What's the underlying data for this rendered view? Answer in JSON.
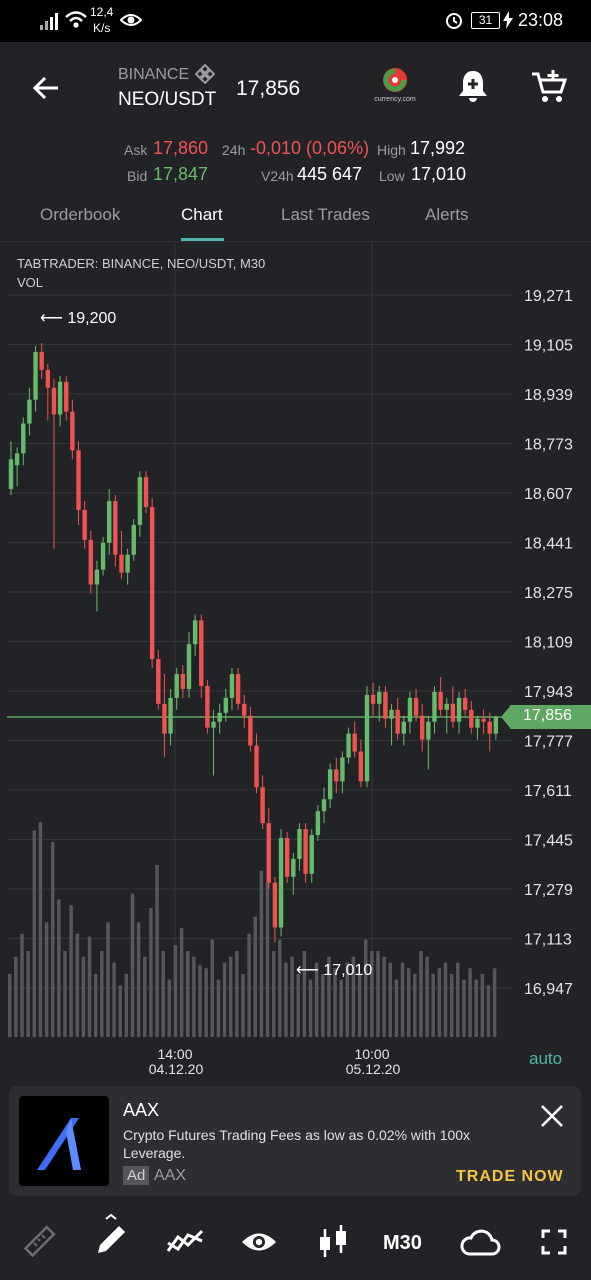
{
  "status_bar": {
    "net_speed_value": "12,4",
    "net_speed_unit": "K/s",
    "battery": "31",
    "time": "23:08"
  },
  "header": {
    "exchange": "BINANCE",
    "pair": "NEO/USDT",
    "price": "17,856",
    "logo_text": "currency.com"
  },
  "stats": {
    "ask_label": "Ask",
    "ask_value": "17,860",
    "bid_label": "Bid",
    "bid_value": "17,847",
    "change_label": "24h",
    "change_value": "-0,010 (0,06%)",
    "volume_label": "V24h",
    "volume_value": "445 647",
    "high_label": "High",
    "high_value": "17,992",
    "low_label": "Low",
    "low_value": "17,010"
  },
  "tabs": [
    "Orderbook",
    "Chart",
    "Last Trades",
    "Alerts"
  ],
  "active_tab": "Chart",
  "chart_info": {
    "line1": "TABTRADER: BINANCE, NEO/USDT, M30",
    "line2": "VOL",
    "auto_label": "auto",
    "max_marker": "⟵ 19,200",
    "min_marker": "⟵ 17,010",
    "current_price_tag": "17,856"
  },
  "chart_data": {
    "type": "candlestick",
    "title": "TABTRADER: BINANCE, NEO/USDT, M30",
    "y_ticks": [
      "19,271",
      "19,105",
      "18,939",
      "18,773",
      "18,607",
      "18,441",
      "18,275",
      "18,109",
      "17,943",
      "17,777",
      "17,611",
      "17,445",
      "17,279",
      "17,113",
      "16,947"
    ],
    "x_ticks": [
      {
        "time": "14:00",
        "date": "04.12.20"
      },
      {
        "time": "10:00",
        "date": "05.12.20"
      }
    ],
    "ylim": [
      16.947,
      19.271
    ],
    "current_price": 17.856,
    "high_marker": 19.2,
    "low_marker": 17.01,
    "candles": [
      {
        "o": 18.62,
        "h": 18.78,
        "l": 18.6,
        "c": 18.72
      },
      {
        "o": 18.7,
        "h": 18.76,
        "l": 18.63,
        "c": 18.74
      },
      {
        "o": 18.74,
        "h": 18.86,
        "l": 18.7,
        "c": 18.84
      },
      {
        "o": 18.84,
        "h": 18.96,
        "l": 18.8,
        "c": 18.92
      },
      {
        "o": 18.92,
        "h": 19.1,
        "l": 18.88,
        "c": 19.08
      },
      {
        "o": 19.08,
        "h": 19.11,
        "l": 18.99,
        "c": 19.02
      },
      {
        "o": 19.02,
        "h": 19.04,
        "l": 18.85,
        "c": 18.96
      },
      {
        "o": 18.96,
        "h": 18.99,
        "l": 18.42,
        "c": 18.87
      },
      {
        "o": 18.87,
        "h": 19.0,
        "l": 18.83,
        "c": 18.98
      },
      {
        "o": 18.98,
        "h": 19.0,
        "l": 18.85,
        "c": 18.88
      },
      {
        "o": 18.88,
        "h": 18.92,
        "l": 18.72,
        "c": 18.75
      },
      {
        "o": 18.75,
        "h": 18.78,
        "l": 18.5,
        "c": 18.55
      },
      {
        "o": 18.55,
        "h": 18.58,
        "l": 18.42,
        "c": 18.45
      },
      {
        "o": 18.45,
        "h": 18.48,
        "l": 18.27,
        "c": 18.3
      },
      {
        "o": 18.3,
        "h": 18.38,
        "l": 18.21,
        "c": 18.35
      },
      {
        "o": 18.35,
        "h": 18.46,
        "l": 18.33,
        "c": 18.44
      },
      {
        "o": 18.44,
        "h": 18.62,
        "l": 18.4,
        "c": 18.58
      },
      {
        "o": 18.58,
        "h": 18.6,
        "l": 18.36,
        "c": 18.4
      },
      {
        "o": 18.4,
        "h": 18.48,
        "l": 18.32,
        "c": 18.34
      },
      {
        "o": 18.34,
        "h": 18.42,
        "l": 18.3,
        "c": 18.4
      },
      {
        "o": 18.4,
        "h": 18.52,
        "l": 18.38,
        "c": 18.5
      },
      {
        "o": 18.5,
        "h": 18.68,
        "l": 18.46,
        "c": 18.66
      },
      {
        "o": 18.66,
        "h": 18.68,
        "l": 18.54,
        "c": 18.56
      },
      {
        "o": 18.56,
        "h": 18.59,
        "l": 18.02,
        "c": 18.05
      },
      {
        "o": 18.05,
        "h": 18.08,
        "l": 17.88,
        "c": 17.9
      },
      {
        "o": 17.9,
        "h": 18.0,
        "l": 17.72,
        "c": 17.8
      },
      {
        "o": 17.8,
        "h": 17.95,
        "l": 17.76,
        "c": 17.92
      },
      {
        "o": 17.92,
        "h": 18.02,
        "l": 17.88,
        "c": 18.0
      },
      {
        "o": 18.0,
        "h": 18.03,
        "l": 17.92,
        "c": 17.95
      },
      {
        "o": 17.95,
        "h": 18.14,
        "l": 17.92,
        "c": 18.1
      },
      {
        "o": 18.1,
        "h": 18.2,
        "l": 18.06,
        "c": 18.18
      },
      {
        "o": 18.18,
        "h": 18.2,
        "l": 17.92,
        "c": 17.96
      },
      {
        "o": 17.96,
        "h": 17.98,
        "l": 17.8,
        "c": 17.82
      },
      {
        "o": 17.82,
        "h": 17.88,
        "l": 17.66,
        "c": 17.84
      },
      {
        "o": 17.84,
        "h": 17.9,
        "l": 17.8,
        "c": 17.87
      },
      {
        "o": 17.87,
        "h": 17.95,
        "l": 17.84,
        "c": 17.92
      },
      {
        "o": 17.92,
        "h": 18.02,
        "l": 17.88,
        "c": 18.0
      },
      {
        "o": 18.0,
        "h": 18.02,
        "l": 17.88,
        "c": 17.9
      },
      {
        "o": 17.9,
        "h": 17.93,
        "l": 17.82,
        "c": 17.86
      },
      {
        "o": 17.86,
        "h": 17.89,
        "l": 17.74,
        "c": 17.76
      },
      {
        "o": 17.76,
        "h": 17.8,
        "l": 17.6,
        "c": 17.62
      },
      {
        "o": 17.62,
        "h": 17.66,
        "l": 17.48,
        "c": 17.5
      },
      {
        "o": 17.5,
        "h": 17.55,
        "l": 17.28,
        "c": 17.3
      },
      {
        "o": 17.3,
        "h": 17.32,
        "l": 17.1,
        "c": 17.15
      },
      {
        "o": 17.15,
        "h": 17.48,
        "l": 17.12,
        "c": 17.45
      },
      {
        "o": 17.45,
        "h": 17.47,
        "l": 17.3,
        "c": 17.32
      },
      {
        "o": 17.32,
        "h": 17.4,
        "l": 17.26,
        "c": 17.38
      },
      {
        "o": 17.38,
        "h": 17.5,
        "l": 17.34,
        "c": 17.48
      },
      {
        "o": 17.48,
        "h": 17.5,
        "l": 17.3,
        "c": 17.33
      },
      {
        "o": 17.33,
        "h": 17.48,
        "l": 17.3,
        "c": 17.46
      },
      {
        "o": 17.46,
        "h": 17.56,
        "l": 17.44,
        "c": 17.54
      },
      {
        "o": 17.54,
        "h": 17.62,
        "l": 17.5,
        "c": 17.58
      },
      {
        "o": 17.58,
        "h": 17.7,
        "l": 17.55,
        "c": 17.68
      },
      {
        "o": 17.68,
        "h": 17.72,
        "l": 17.6,
        "c": 17.64
      },
      {
        "o": 17.64,
        "h": 17.74,
        "l": 17.6,
        "c": 17.72
      },
      {
        "o": 17.72,
        "h": 17.82,
        "l": 17.7,
        "c": 17.8
      },
      {
        "o": 17.8,
        "h": 17.84,
        "l": 17.72,
        "c": 17.74
      },
      {
        "o": 17.74,
        "h": 17.78,
        "l": 17.62,
        "c": 17.64
      },
      {
        "o": 17.64,
        "h": 17.96,
        "l": 17.62,
        "c": 17.93
      },
      {
        "o": 17.93,
        "h": 17.97,
        "l": 17.86,
        "c": 17.9
      },
      {
        "o": 17.9,
        "h": 17.96,
        "l": 17.84,
        "c": 17.94
      },
      {
        "o": 17.94,
        "h": 17.96,
        "l": 17.82,
        "c": 17.85
      },
      {
        "o": 17.85,
        "h": 17.9,
        "l": 17.76,
        "c": 17.88
      },
      {
        "o": 17.88,
        "h": 17.92,
        "l": 17.78,
        "c": 17.8
      },
      {
        "o": 17.8,
        "h": 17.86,
        "l": 17.76,
        "c": 17.84
      },
      {
        "o": 17.84,
        "h": 17.94,
        "l": 17.8,
        "c": 17.92
      },
      {
        "o": 17.92,
        "h": 17.95,
        "l": 17.84,
        "c": 17.86
      },
      {
        "o": 17.86,
        "h": 17.9,
        "l": 17.74,
        "c": 17.78
      },
      {
        "o": 17.78,
        "h": 17.86,
        "l": 17.68,
        "c": 17.84
      },
      {
        "o": 17.84,
        "h": 17.96,
        "l": 17.8,
        "c": 17.94
      },
      {
        "o": 17.94,
        "h": 17.99,
        "l": 17.86,
        "c": 17.88
      },
      {
        "o": 17.88,
        "h": 17.92,
        "l": 17.8,
        "c": 17.9
      },
      {
        "o": 17.9,
        "h": 17.96,
        "l": 17.82,
        "c": 17.84
      },
      {
        "o": 17.84,
        "h": 17.94,
        "l": 17.8,
        "c": 17.92
      },
      {
        "o": 17.92,
        "h": 17.95,
        "l": 17.86,
        "c": 17.88
      },
      {
        "o": 17.88,
        "h": 17.91,
        "l": 17.8,
        "c": 17.82
      },
      {
        "o": 17.82,
        "h": 17.86,
        "l": 17.78,
        "c": 17.85
      },
      {
        "o": 17.85,
        "h": 17.88,
        "l": 17.8,
        "c": 17.84
      },
      {
        "o": 17.84,
        "h": 17.87,
        "l": 17.74,
        "c": 17.8
      },
      {
        "o": 17.8,
        "h": 17.86,
        "l": 17.78,
        "c": 17.856
      }
    ],
    "volumes": [
      22,
      28,
      36,
      30,
      72,
      75,
      40,
      68,
      48,
      30,
      46,
      36,
      28,
      35,
      22,
      30,
      40,
      26,
      18,
      22,
      50,
      40,
      28,
      45,
      60,
      30,
      20,
      32,
      38,
      30,
      28,
      25,
      24,
      34,
      20,
      26,
      28,
      30,
      22,
      36,
      42,
      58,
      54,
      30,
      34,
      26,
      28,
      22,
      30,
      20,
      26,
      22,
      28,
      24,
      20,
      26,
      28,
      22,
      34,
      30,
      30,
      28,
      26,
      20,
      26,
      24,
      22,
      30,
      28,
      22,
      24,
      26,
      22,
      26,
      20,
      24,
      20,
      22,
      18,
      24
    ]
  },
  "ad": {
    "title": "AAX",
    "body": "Crypto Futures Trading Fees as low as 0.02% with 100x Leverage.",
    "badge": "Ad",
    "advertiser": "AAX",
    "cta": "TRADE NOW"
  },
  "toolbar": {
    "timeframe": "M30"
  },
  "colors": {
    "up": "#66bb6a",
    "down": "#ef5350",
    "accent": "#4db6ac",
    "cta": "#f5c542"
  }
}
